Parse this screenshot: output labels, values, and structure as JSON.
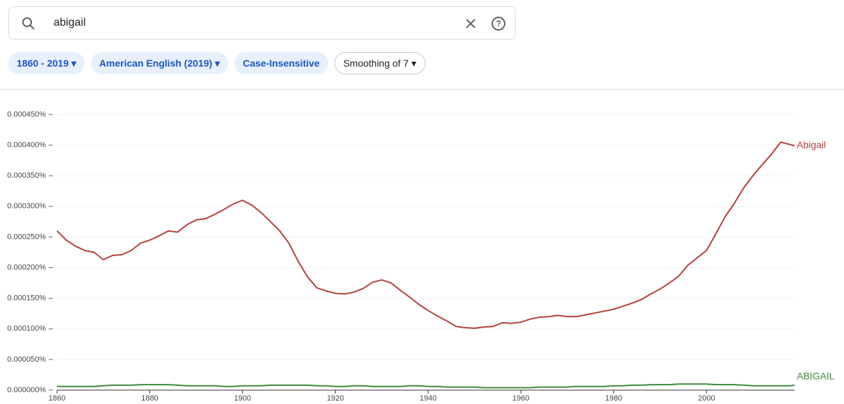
{
  "search": {
    "query": "abigail"
  },
  "chips": [
    "1860 - 2019",
    "American English (2019)",
    "Case-Insensitive",
    "Smoothing of 7"
  ],
  "chart_data": {
    "type": "line",
    "x": [
      1860,
      1862,
      1864,
      1866,
      1868,
      1870,
      1872,
      1874,
      1876,
      1878,
      1880,
      1882,
      1884,
      1886,
      1888,
      1890,
      1892,
      1894,
      1896,
      1898,
      1900,
      1902,
      1904,
      1906,
      1908,
      1910,
      1912,
      1914,
      1916,
      1918,
      1920,
      1922,
      1924,
      1926,
      1928,
      1930,
      1932,
      1934,
      1936,
      1938,
      1940,
      1942,
      1944,
      1946,
      1948,
      1950,
      1952,
      1954,
      1956,
      1958,
      1960,
      1962,
      1964,
      1966,
      1968,
      1970,
      1972,
      1974,
      1976,
      1978,
      1980,
      1982,
      1984,
      1986,
      1988,
      1990,
      1992,
      1994,
      1996,
      1998,
      2000,
      2002,
      2004,
      2006,
      2008,
      2010,
      2012,
      2014,
      2016,
      2018,
      2019
    ],
    "series": [
      {
        "name": "Abigail",
        "color": "#b5403b",
        "values": [
          0.00026,
          0.000245,
          0.000235,
          0.000228,
          0.000225,
          0.000213,
          0.00022,
          0.000221,
          0.000228,
          0.00024,
          0.000245,
          0.000252,
          0.00026,
          0.000258,
          0.00027,
          0.000278,
          0.00028,
          0.000287,
          0.000295,
          0.000304,
          0.00031,
          0.000302,
          0.00029,
          0.000275,
          0.00026,
          0.00024,
          0.00021,
          0.000185,
          0.000167,
          0.000162,
          0.000158,
          0.000157,
          0.00016,
          0.000166,
          0.000176,
          0.00018,
          0.000175,
          0.000163,
          0.000152,
          0.00014,
          0.00013,
          0.000121,
          0.000113,
          0.000104,
          0.000102,
          0.000101,
          0.000103,
          0.000104,
          0.00011,
          0.000109,
          0.000111,
          0.000116,
          0.000119,
          0.00012,
          0.000122,
          0.00012,
          0.00012,
          0.000123,
          0.000126,
          0.000129,
          0.000132,
          0.000137,
          0.000142,
          0.000148,
          0.000157,
          0.000165,
          0.000175,
          0.000186,
          0.000204,
          0.000216,
          0.000228,
          0.000255,
          0.000283,
          0.000305,
          0.00033,
          0.00035,
          0.000368,
          0.000385,
          0.000405,
          0.000401,
          0.000399
        ]
      },
      {
        "name": "ABIGAIL",
        "color": "#3e8b3a",
        "values": [
          6e-06,
          6e-06,
          6e-06,
          6e-06,
          6e-06,
          7e-06,
          8e-06,
          8e-06,
          8e-06,
          9e-06,
          9e-06,
          9e-06,
          9e-06,
          8e-06,
          7e-06,
          7e-06,
          7e-06,
          7e-06,
          6e-06,
          6e-06,
          7e-06,
          7e-06,
          7e-06,
          8e-06,
          8e-06,
          8e-06,
          8e-06,
          8e-06,
          7e-06,
          7e-06,
          6e-06,
          6e-06,
          7e-06,
          7e-06,
          6e-06,
          6e-06,
          6e-06,
          6e-06,
          7e-06,
          7e-06,
          6e-06,
          6e-06,
          5e-06,
          5e-06,
          5e-06,
          5e-06,
          4e-06,
          4e-06,
          4e-06,
          4e-06,
          4e-06,
          4e-06,
          5e-06,
          5e-06,
          5e-06,
          5e-06,
          6e-06,
          6e-06,
          6e-06,
          6e-06,
          7e-06,
          7e-06,
          8e-06,
          8e-06,
          9e-06,
          9e-06,
          9e-06,
          1e-05,
          1e-05,
          1e-05,
          1e-05,
          9e-06,
          9e-06,
          9e-06,
          8e-06,
          7e-06,
          7e-06,
          7e-06,
          7e-06,
          7e-06,
          8e-06
        ]
      }
    ],
    "xlim": [
      1860,
      2019
    ],
    "xticks": [
      1860,
      1880,
      1900,
      1920,
      1940,
      1960,
      1980,
      2000
    ],
    "ylim": [
      0,
      0.00045
    ],
    "yticks": [
      {
        "value": 0,
        "label": "0.000000%"
      },
      {
        "value": 5e-05,
        "label": "0.000050%"
      },
      {
        "value": 0.0001,
        "label": "0.000100%"
      },
      {
        "value": 0.00015,
        "label": "0.000150%"
      },
      {
        "value": 0.0002,
        "label": "0.000200%"
      },
      {
        "value": 0.00025,
        "label": "0.000250%"
      },
      {
        "value": 0.0003,
        "label": "0.000300%"
      },
      {
        "value": 0.00035,
        "label": "0.000350%"
      },
      {
        "value": 0.0004,
        "label": "0.000400%"
      },
      {
        "value": 0.00045,
        "label": "0.000450%"
      }
    ],
    "grid": true
  }
}
